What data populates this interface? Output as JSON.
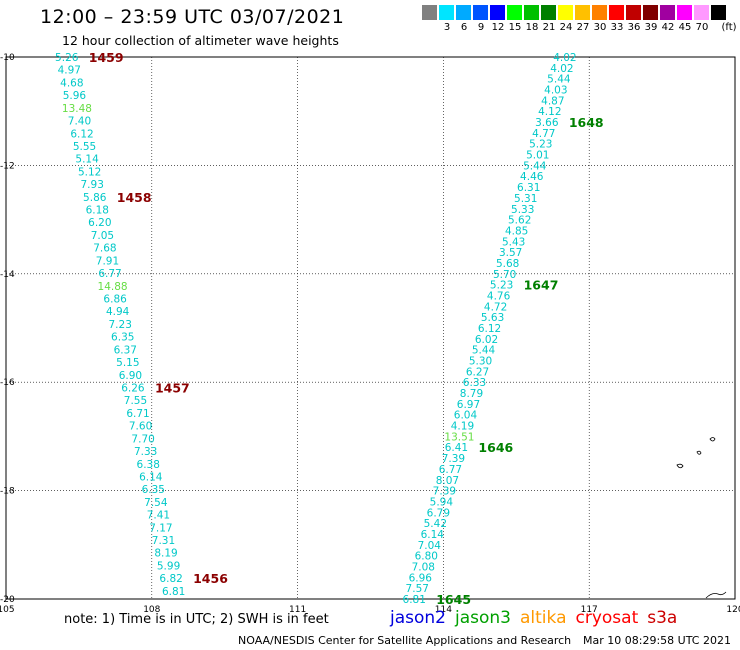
{
  "header": {
    "title": "12:00 – 23:59 UTC 03/07/2021",
    "subtitle": "12 hour collection of altimeter wave heights"
  },
  "scale": {
    "unit": "(ft)",
    "entries": [
      {
        "label": "",
        "color": "#808080"
      },
      {
        "label": "3",
        "color": "#00e5ff"
      },
      {
        "label": "6",
        "color": "#00aaff"
      },
      {
        "label": "9",
        "color": "#0055ff"
      },
      {
        "label": "12",
        "color": "#0000ff"
      },
      {
        "label": "15",
        "color": "#00ff00"
      },
      {
        "label": "18",
        "color": "#00c000"
      },
      {
        "label": "21",
        "color": "#008000"
      },
      {
        "label": "24",
        "color": "#ffff00"
      },
      {
        "label": "27",
        "color": "#ffc000"
      },
      {
        "label": "30",
        "color": "#ff8000"
      },
      {
        "label": "33",
        "color": "#ff0000"
      },
      {
        "label": "36",
        "color": "#c00000"
      },
      {
        "label": "39",
        "color": "#800000"
      },
      {
        "label": "42",
        "color": "#a000a0"
      },
      {
        "label": "45",
        "color": "#ff00ff"
      },
      {
        "label": "70",
        "color": "#ff99ff"
      },
      {
        "label": "",
        "color": "#000000"
      }
    ]
  },
  "map": {
    "lon_range": [
      105,
      120
    ],
    "lat_range": [
      -20,
      -10
    ],
    "lon_ticks": [
      105,
      108,
      111,
      114,
      117,
      120
    ],
    "lat_ticks": [
      -10,
      -12,
      -14,
      -16,
      -18,
      -20
    ],
    "lon_labels": [
      "105",
      "108",
      "111",
      "114",
      "117",
      "120"
    ],
    "lat_labels": [
      "-10",
      "-12",
      "-14",
      "-16",
      "-18",
      "-20"
    ],
    "colors": {
      "cyan": "#00c8c8",
      "light_green": "#66dd44",
      "time_dark_red": "#8b0000",
      "time_green": "#008000"
    },
    "tracks": [
      {
        "time_color": "time_dark_red",
        "start": {
          "lon": 106.25,
          "lat": -10.0
        },
        "end": {
          "lon": 108.45,
          "lat": -19.85
        },
        "values": [
          "5.26",
          "4.97",
          "4.68",
          "5.96",
          "13.48",
          "7.40",
          "6.12",
          "5.55",
          "5.14",
          "5.12",
          "7.93",
          "5.86",
          "6.18",
          "6.20",
          "7.05",
          "7.68",
          "7.91",
          "6.77",
          "14.88",
          "6.86",
          "4.94",
          "7.23",
          "6.35",
          "6.37",
          "5.15",
          "6.90",
          "6.26",
          "7.55",
          "6.71",
          "7.60",
          "7.70",
          "7.33",
          "6.38",
          "6.14",
          "6.35",
          "7.54",
          "7.41",
          "7.17",
          "7.31",
          "8.19",
          "5.99",
          "6.82",
          "6.81"
        ],
        "highlight": [
          4,
          18
        ],
        "times": [
          {
            "label": "1459",
            "index": 0
          },
          {
            "label": "1458",
            "index": 11
          },
          {
            "label": "1457",
            "index": 26
          },
          {
            "label": "1456",
            "index": 41
          }
        ]
      },
      {
        "time_color": "time_green",
        "start": {
          "lon": 113.4,
          "lat": -20.0
        },
        "end": {
          "lon": 116.5,
          "lat": -10.0
        },
        "values": [
          "6.81",
          "7.57",
          "6.96",
          "7.08",
          "6.80",
          "7.04",
          "6.14",
          "5.42",
          "6.79",
          "5.94",
          "7.39",
          "8.07",
          "6.77",
          "7.39",
          "6.41",
          "13.51",
          "4.19",
          "6.04",
          "6.97",
          "8.79",
          "6.33",
          "6.27",
          "5.30",
          "5.44",
          "6.02",
          "6.12",
          "5.63",
          "4.72",
          "4.76",
          "5.23",
          "5.70",
          "5.68",
          "3.57",
          "5.43",
          "4.85",
          "5.62",
          "5.33",
          "5.31",
          "6.31",
          "4.46",
          "5.44",
          "5.01",
          "5.23",
          "4.77",
          "3.66",
          "4.12",
          "4.87",
          "4.03",
          "5.44",
          "4.02",
          "4.02"
        ],
        "highlight": [
          15
        ],
        "times": [
          {
            "label": "1645",
            "index": 0
          },
          {
            "label": "1646",
            "index": 14
          },
          {
            "label": "1647",
            "index": 29
          },
          {
            "label": "1648",
            "index": 44
          }
        ]
      }
    ]
  },
  "footer": {
    "note": "note:  1) Time is in UTC;  2) SWH is in feet",
    "satellites": [
      {
        "name": "jason2",
        "color": "#0000dd"
      },
      {
        "name": "jason3",
        "color": "#00a000"
      },
      {
        "name": "altika",
        "color": "#ff9900"
      },
      {
        "name": "cryosat",
        "color": "#ff0000"
      },
      {
        "name": "s3a",
        "color": "#cc0000"
      }
    ],
    "credit": "NOAA/NESDIS Center for Satellite Applications and Research",
    "timestamp": "Mar 10 08:29:58 UTC 2021"
  }
}
